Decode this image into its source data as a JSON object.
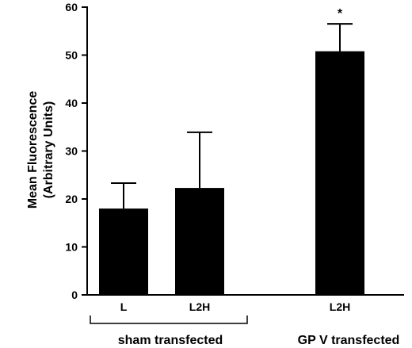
{
  "chart_data": {
    "type": "bar",
    "categories": [
      "L",
      "L2H",
      "L2H"
    ],
    "values": [
      18,
      22.3,
      50.8
    ],
    "errors": [
      5.3,
      11.6,
      5.7
    ],
    "ylabel_line1": "Mean Fluorescence",
    "ylabel_line2": "(Arbitrary Units)",
    "ylim": [
      0,
      60
    ],
    "yticks": [
      "0",
      "10",
      "20",
      "30",
      "40",
      "50",
      "60"
    ],
    "groups": [
      "sham transfected",
      "GP V transfected"
    ],
    "annotations": [
      "",
      "",
      "*"
    ],
    "bar_color": "#000000"
  }
}
